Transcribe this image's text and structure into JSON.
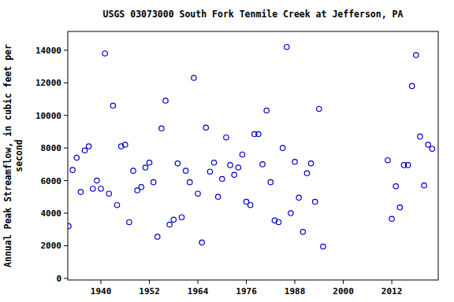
{
  "chart_data": {
    "type": "scatter",
    "title": "USGS 03073000 South Fork Tenmile Creek at Jefferson, PA",
    "y_label": "Annual Peak Streamflow, in cubic feet per second",
    "x": [
      1932,
      1933,
      1934,
      1935,
      1936,
      1937,
      1938,
      1939,
      1940,
      1941,
      1942,
      1943,
      1944,
      1945,
      1946,
      1947,
      1948,
      1949,
      1950,
      1951,
      1952,
      1953,
      1954,
      1955,
      1956,
      1957,
      1958,
      1959,
      1960,
      1961,
      1962,
      1963,
      1964,
      1965,
      1966,
      1967,
      1968,
      1969,
      1970,
      1971,
      1972,
      1973,
      1974,
      1975,
      1976,
      1977,
      1978,
      1979,
      1980,
      1981,
      1982,
      1983,
      1984,
      1985,
      1986,
      1987,
      1988,
      1989,
      1990,
      1991,
      1992,
      1993,
      1994,
      1995,
      2011,
      2012,
      2013,
      2014,
      2015,
      2016,
      2017,
      2018,
      2019,
      2020,
      2021,
      2022
    ],
    "values": [
      3200,
      6650,
      7400,
      5300,
      7850,
      8100,
      5500,
      6000,
      5500,
      13800,
      5200,
      10600,
      4500,
      8100,
      8200,
      3450,
      6600,
      5400,
      5600,
      6800,
      7100,
      5900,
      2550,
      9200,
      10900,
      3300,
      3600,
      7050,
      3750,
      6600,
      5900,
      12300,
      5200,
      2200,
      9250,
      6550,
      7100,
      5000,
      6100,
      8650,
      6950,
      6350,
      6800,
      7600,
      4700,
      4500,
      8850,
      8850,
      7000,
      10300,
      5900,
      3550,
      3450,
      8000,
      14200,
      4000,
      7150,
      4950,
      2850,
      6450,
      7050,
      4700,
      10400,
      1950,
      7250,
      3650,
      5650,
      4350,
      6950,
      6950,
      11800,
      13700,
      8700,
      5700,
      8200,
      7950
    ],
    "color": "#0000cc",
    "marker": "circle-open",
    "xlim": [
      1931.8,
      2023.5
    ],
    "xticks": [
      1940,
      1952,
      1964,
      1976,
      1988,
      2000,
      2012
    ],
    "ylim": [
      -100,
      15150
    ],
    "yticks": [
      0,
      2000,
      4000,
      6000,
      8000,
      10000,
      12000,
      14000
    ],
    "grid": false
  }
}
